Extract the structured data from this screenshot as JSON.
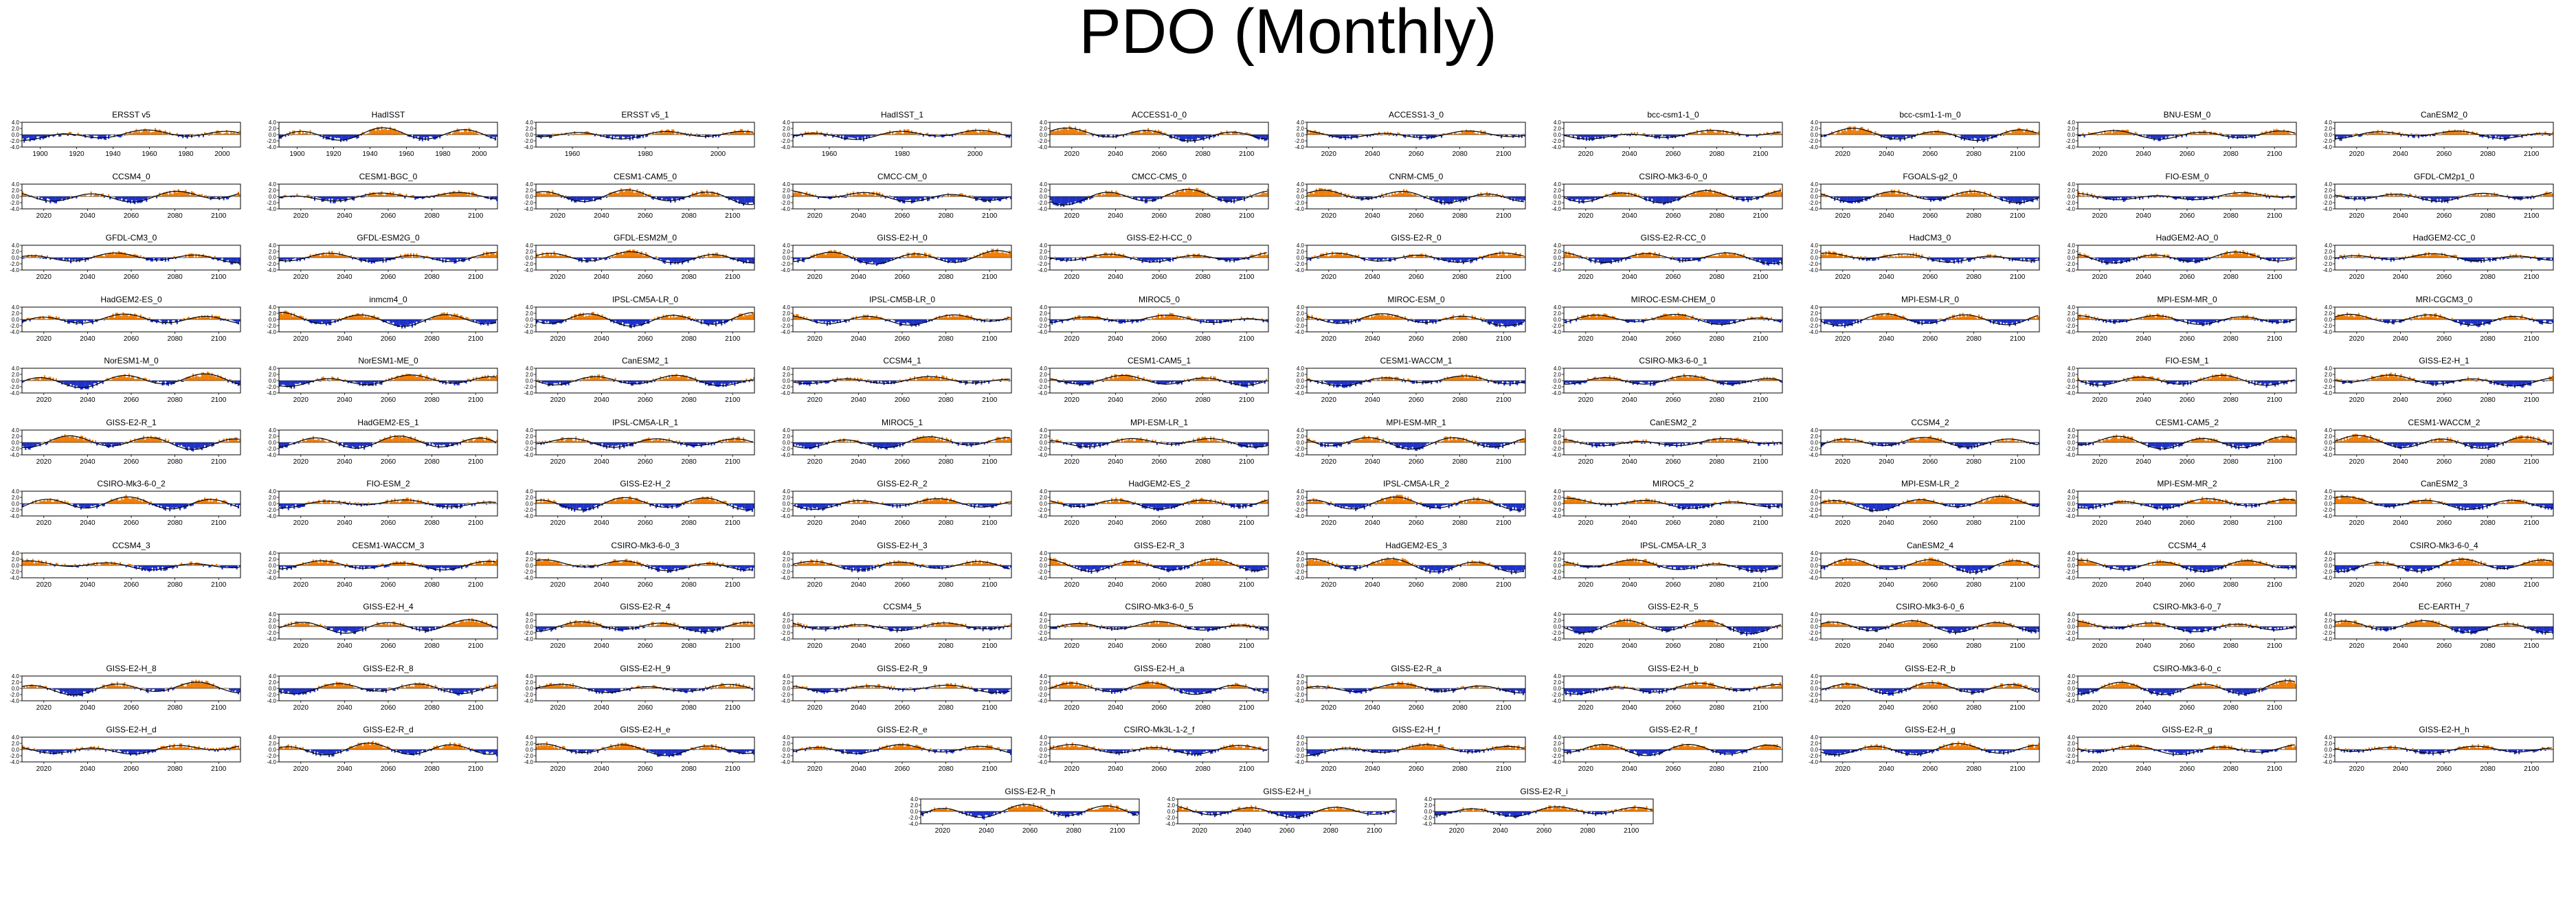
{
  "title": "PDO (Monthly)",
  "colors": {
    "positive": "#f07f0a",
    "negative": "#1f32c8",
    "trend": "#000000",
    "axis": "#000000"
  },
  "chart_data": {
    "type": "area",
    "description_of_mark": "small-multiple panels, monthly PDO index shaded orange above zero and blue below zero, black running-mean line",
    "ylim": [
      -4.0,
      4.0
    ],
    "yticks": [
      "4.0",
      "2.0",
      "0.0",
      "-2.0",
      "-4.0"
    ],
    "xticks_obs": [
      "1900",
      "1920",
      "1940",
      "1960",
      "1980",
      "2000"
    ],
    "xticks_obs_short": [
      "1960",
      "1980",
      "2000"
    ],
    "xticks_model": [
      "2020",
      "2040",
      "2060",
      "2080",
      "2100"
    ],
    "panels": [
      {
        "name": "ERSST v5",
        "ticks": "obs"
      },
      {
        "name": "HadISST",
        "ticks": "obs"
      },
      {
        "name": "ERSST v5_1",
        "ticks": "obs_short"
      },
      {
        "name": "HadISST_1",
        "ticks": "obs_short"
      },
      {
        "name": "ACCESS1-0_0",
        "ticks": "model"
      },
      {
        "name": "ACCESS1-3_0",
        "ticks": "model"
      },
      {
        "name": "bcc-csm1-1_0",
        "ticks": "model"
      },
      {
        "name": "bcc-csm1-1-m_0",
        "ticks": "model"
      },
      {
        "name": "BNU-ESM_0",
        "ticks": "model"
      },
      {
        "name": "CanESM2_0",
        "ticks": "model"
      },
      {
        "name": "CCSM4_0",
        "ticks": "model"
      },
      {
        "name": "CESM1-BGC_0",
        "ticks": "model"
      },
      {
        "name": "CESM1-CAM5_0",
        "ticks": "model"
      },
      {
        "name": "CMCC-CM_0",
        "ticks": "model"
      },
      {
        "name": "CMCC-CMS_0",
        "ticks": "model"
      },
      {
        "name": "CNRM-CM5_0",
        "ticks": "model"
      },
      {
        "name": "CSIRO-Mk3-6-0_0",
        "ticks": "model"
      },
      {
        "name": "FGOALS-g2_0",
        "ticks": "model"
      },
      {
        "name": "FIO-ESM_0",
        "ticks": "model"
      },
      {
        "name": "GFDL-CM2p1_0",
        "ticks": "model"
      },
      {
        "name": "GFDL-CM3_0",
        "ticks": "model"
      },
      {
        "name": "GFDL-ESM2G_0",
        "ticks": "model"
      },
      {
        "name": "GFDL-ESM2M_0",
        "ticks": "model"
      },
      {
        "name": "GISS-E2-H_0",
        "ticks": "model"
      },
      {
        "name": "GISS-E2-H-CC_0",
        "ticks": "model"
      },
      {
        "name": "GISS-E2-R_0",
        "ticks": "model"
      },
      {
        "name": "GISS-E2-R-CC_0",
        "ticks": "model"
      },
      {
        "name": "HadCM3_0",
        "ticks": "model"
      },
      {
        "name": "HadGEM2-AO_0",
        "ticks": "model"
      },
      {
        "name": "HadGEM2-CC_0",
        "ticks": "model"
      },
      {
        "name": "HadGEM2-ES_0",
        "ticks": "model"
      },
      {
        "name": "inmcm4_0",
        "ticks": "model"
      },
      {
        "name": "IPSL-CM5A-LR_0",
        "ticks": "model"
      },
      {
        "name": "IPSL-CM5B-LR_0",
        "ticks": "model"
      },
      {
        "name": "MIROC5_0",
        "ticks": "model"
      },
      {
        "name": "MIROC-ESM_0",
        "ticks": "model"
      },
      {
        "name": "MIROC-ESM-CHEM_0",
        "ticks": "model"
      },
      {
        "name": "MPI-ESM-LR_0",
        "ticks": "model"
      },
      {
        "name": "MPI-ESM-MR_0",
        "ticks": "model"
      },
      {
        "name": "MRI-CGCM3_0",
        "ticks": "model"
      },
      {
        "name": "NorESM1-M_0",
        "ticks": "model"
      },
      {
        "name": "NorESM1-ME_0",
        "ticks": "model"
      },
      {
        "name": "CanESM2_1",
        "ticks": "model"
      },
      {
        "name": "CCSM4_1",
        "ticks": "model"
      },
      {
        "name": "CESM1-CAM5_1",
        "ticks": "model"
      },
      {
        "name": "CESM1-WACCM_1",
        "ticks": "model"
      },
      {
        "name": "CSIRO-Mk3-6-0_1",
        "ticks": "model"
      },
      {
        "name": "FIO-ESM_1",
        "ticks": "model"
      },
      {
        "name": "GISS-E2-H_1",
        "ticks": "model"
      },
      {
        "name": "GISS-E2-R_1",
        "ticks": "model"
      },
      {
        "name": "HadGEM2-ES_1",
        "ticks": "model"
      },
      {
        "name": "IPSL-CM5A-LR_1",
        "ticks": "model"
      },
      {
        "name": "MIROC5_1",
        "ticks": "model"
      },
      {
        "name": "MPI-ESM-LR_1",
        "ticks": "model"
      },
      {
        "name": "MPI-ESM-MR_1",
        "ticks": "model"
      },
      {
        "name": "CanESM2_2",
        "ticks": "model"
      },
      {
        "name": "CCSM4_2",
        "ticks": "model"
      },
      {
        "name": "CESM1-CAM5_2",
        "ticks": "model"
      },
      {
        "name": "CESM1-WACCM_2",
        "ticks": "model"
      },
      {
        "name": "CSIRO-Mk3-6-0_2",
        "ticks": "model"
      },
      {
        "name": "FIO-ESM_2",
        "ticks": "model"
      },
      {
        "name": "GISS-E2-H_2",
        "ticks": "model"
      },
      {
        "name": "GISS-E2-R_2",
        "ticks": "model"
      },
      {
        "name": "HadGEM2-ES_2",
        "ticks": "model"
      },
      {
        "name": "IPSL-CM5A-LR_2",
        "ticks": "model"
      },
      {
        "name": "MIROC5_2",
        "ticks": "model"
      },
      {
        "name": "MPI-ESM-LR_2",
        "ticks": "model"
      },
      {
        "name": "MPI-ESM-MR_2",
        "ticks": "model"
      },
      {
        "name": "CanESM2_3",
        "ticks": "model"
      },
      {
        "name": "CCSM4_3",
        "ticks": "model"
      },
      {
        "name": "CESM1-WACCM_3",
        "ticks": "model"
      },
      {
        "name": "CSIRO-Mk3-6-0_3",
        "ticks": "model"
      },
      {
        "name": "GISS-E2-H_3",
        "ticks": "model"
      },
      {
        "name": "GISS-E2-R_3",
        "ticks": "model"
      },
      {
        "name": "HadGEM2-ES_3",
        "ticks": "model"
      },
      {
        "name": "IPSL-CM5A-LR_3",
        "ticks": "model"
      },
      {
        "name": "CanESM2_4",
        "ticks": "model"
      },
      {
        "name": "CCSM4_4",
        "ticks": "model"
      },
      {
        "name": "CSIRO-Mk3-6-0_4",
        "ticks": "model"
      },
      {
        "name": "GISS-E2-H_4",
        "ticks": "model"
      },
      {
        "name": "GISS-E2-R_4",
        "ticks": "model"
      },
      {
        "name": "CCSM4_5",
        "ticks": "model"
      },
      {
        "name": "CSIRO-Mk3-6-0_5",
        "ticks": "model"
      },
      {
        "name": "GISS-E2-R_5",
        "ticks": "model"
      },
      {
        "name": "CSIRO-Mk3-6-0_6",
        "ticks": "model"
      },
      {
        "name": "CSIRO-Mk3-6-0_7",
        "ticks": "model"
      },
      {
        "name": "EC-EARTH_7",
        "ticks": "model"
      },
      {
        "name": "GISS-E2-H_8",
        "ticks": "model"
      },
      {
        "name": "GISS-E2-R_8",
        "ticks": "model"
      },
      {
        "name": "GISS-E2-H_9",
        "ticks": "model"
      },
      {
        "name": "GISS-E2-R_9",
        "ticks": "model"
      },
      {
        "name": "GISS-E2-H_a",
        "ticks": "model"
      },
      {
        "name": "GISS-E2-R_a",
        "ticks": "model"
      },
      {
        "name": "GISS-E2-H_b",
        "ticks": "model"
      },
      {
        "name": "GISS-E2-R_b",
        "ticks": "model"
      },
      {
        "name": "CSIRO-Mk3-6-0_c",
        "ticks": "model"
      },
      {
        "name": "GISS-E2-H_d",
        "ticks": "model"
      },
      {
        "name": "GISS-E2-R_d",
        "ticks": "model"
      },
      {
        "name": "GISS-E2-H_e",
        "ticks": "model"
      },
      {
        "name": "GISS-E2-R_e",
        "ticks": "model"
      },
      {
        "name": "CSIRO-Mk3L-1-2_f",
        "ticks": "model"
      },
      {
        "name": "GISS-E2-H_f",
        "ticks": "model"
      },
      {
        "name": "GISS-E2-R_f",
        "ticks": "model"
      },
      {
        "name": "GISS-E2-H_g",
        "ticks": "model"
      },
      {
        "name": "GISS-E2-R_g",
        "ticks": "model"
      },
      {
        "name": "GISS-E2-H_h",
        "ticks": "model"
      },
      {
        "name": "GISS-E2-R_h",
        "ticks": "model"
      },
      {
        "name": "GISS-E2-H_i",
        "ticks": "model"
      },
      {
        "name": "GISS-E2-R_i",
        "ticks": "model"
      }
    ]
  }
}
